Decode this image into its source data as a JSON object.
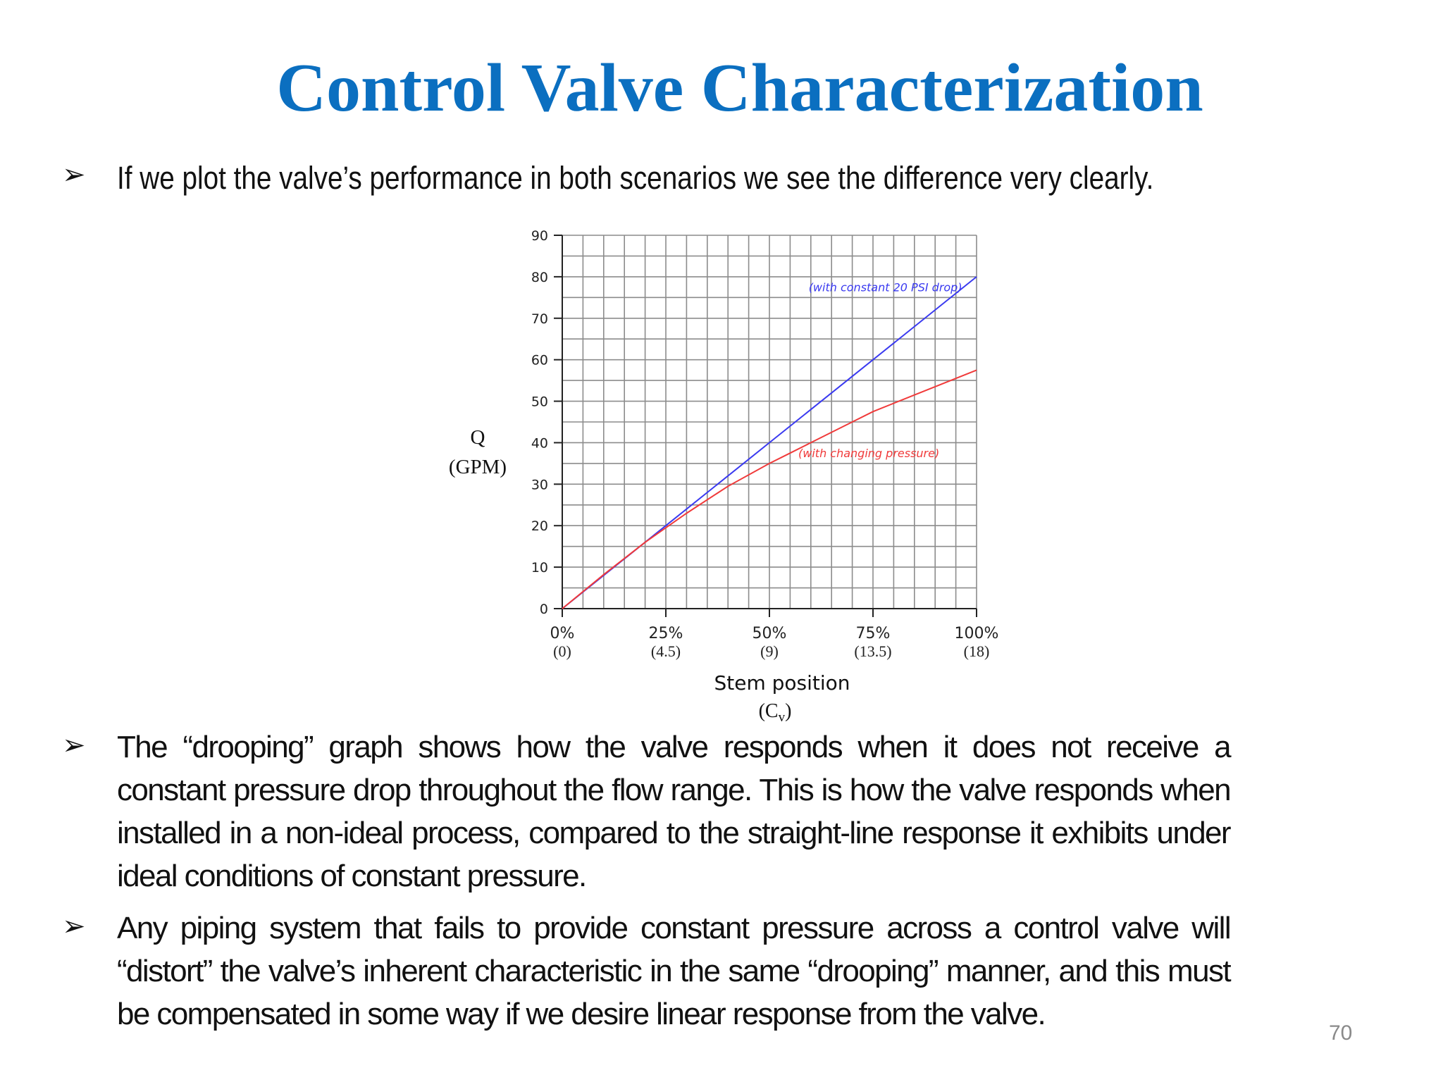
{
  "slide": {
    "title": "Control Valve Characterization",
    "bullet_symbol": "➢",
    "bullets": [
      "If we plot the valve’s performance in both scenarios we see the difference very clearly.",
      "The “drooping” graph shows how the valve responds when it does not receive a constant pressure drop throughout the flow range. This is how the valve responds when installed in a non-ideal process, compared to the straight-line response it exhibits under ideal conditions of constant pressure.",
      "Any piping system that fails to provide constant pressure across a control valve will “distort” the valve’s inherent characteristic in the same “drooping” manner, and this must be compensated in some way if we desire linear response from the valve."
    ],
    "page_number": "70",
    "title_color": "#0b6fc0"
  },
  "chart_data": {
    "type": "line",
    "ylabel": [
      "Q",
      "(GPM)"
    ],
    "xlabel": "Stem position",
    "xlabel_sub": "(C",
    "xlabel_sub_index": "v",
    "xlabel_sub_close": ")",
    "yticks": [
      "0",
      "10",
      "20",
      "30",
      "40",
      "50",
      "60",
      "70",
      "80",
      "90"
    ],
    "xticks": [
      {
        "pct": "0%",
        "cv": "(0)",
        "value": 0
      },
      {
        "pct": "25%",
        "cv": "(4.5)",
        "value": 25
      },
      {
        "pct": "50%",
        "cv": "(9)",
        "value": 50
      },
      {
        "pct": "75%",
        "cv": "(13.5)",
        "value": 75
      },
      {
        "pct": "100%",
        "cv": "(18)",
        "value": 100
      }
    ],
    "xlim": [
      0,
      100
    ],
    "ylim": [
      0,
      90
    ],
    "grid": true,
    "series": [
      {
        "name": "(with constant 20 PSI drop)",
        "color": "#3a3af0",
        "x": [
          0,
          25,
          50,
          75,
          100
        ],
        "y": [
          0,
          20,
          40,
          60,
          80
        ]
      },
      {
        "name": "(with changing pressure)",
        "color": "#f03a3a",
        "x": [
          0,
          10,
          20,
          25,
          30,
          40,
          50,
          55,
          60,
          70,
          75,
          80,
          90,
          100
        ],
        "y": [
          0,
          8.2,
          16,
          19.5,
          23,
          29.5,
          35,
          37.5,
          40,
          45,
          47.5,
          49.5,
          53.5,
          57.5
        ]
      }
    ]
  }
}
